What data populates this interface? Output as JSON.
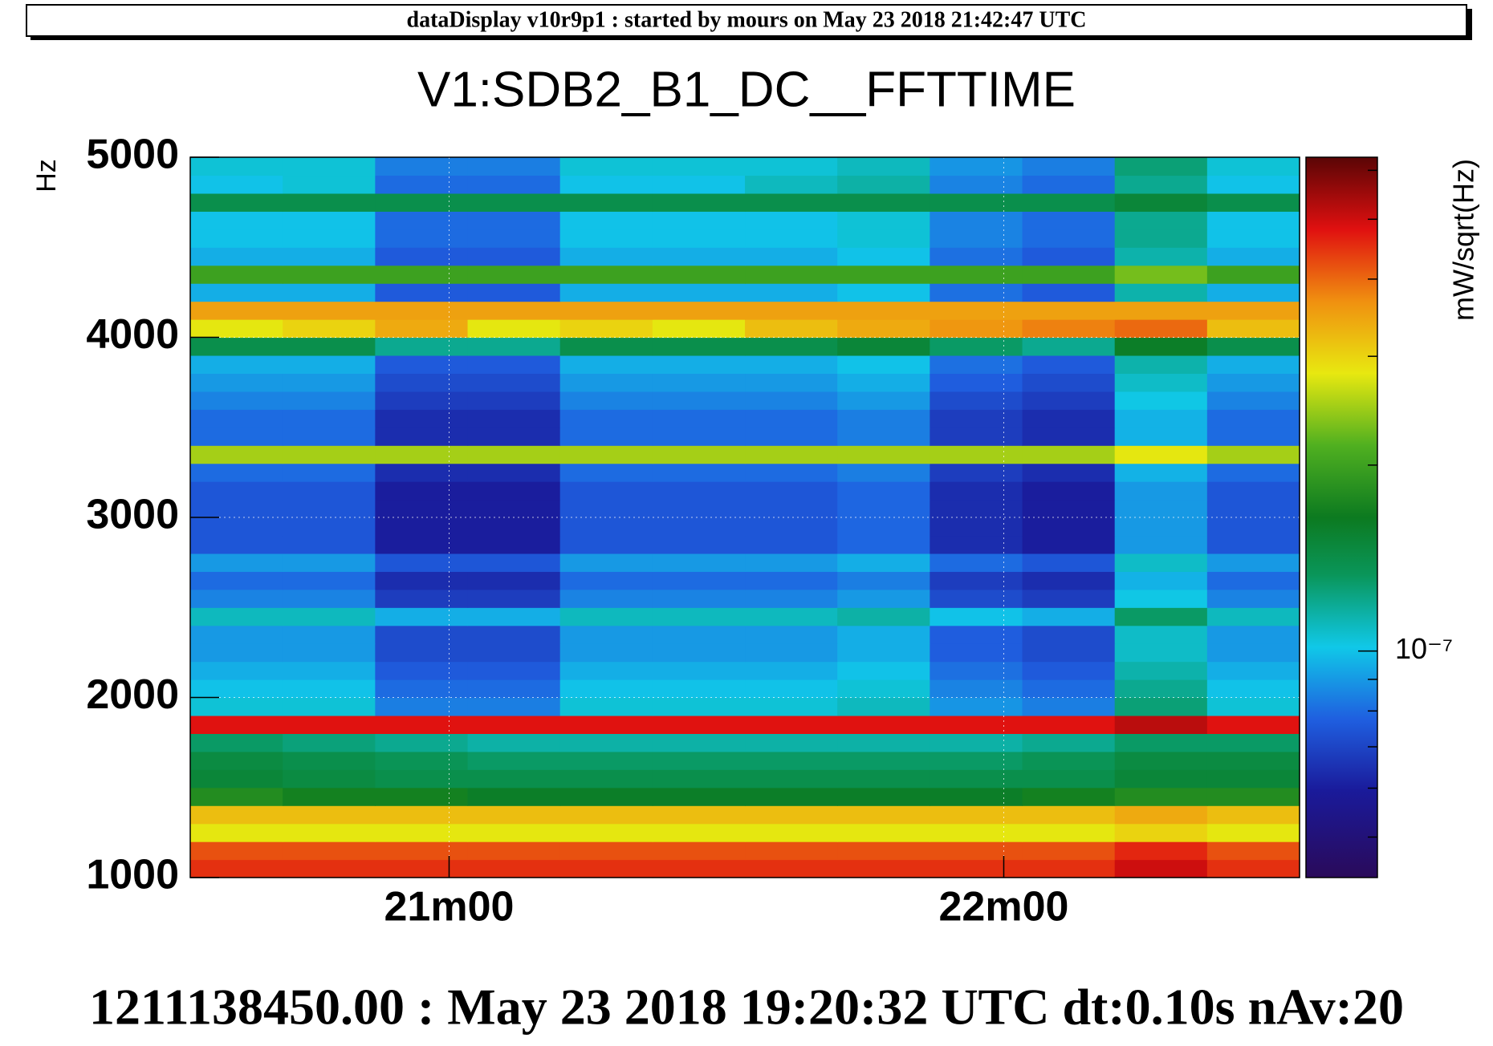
{
  "header": "dataDisplay v10r9p1 : started by mours on May 23 2018 21:42:47 UTC",
  "footer": "1211138450.00 : May 23 2018 19:20:32 UTC dt:0.10s nAv:20",
  "chart_data": {
    "type": "heatmap",
    "title": "V1:SDB2_B1_DC__FFTTIME",
    "y_label": "Hz",
    "colorbar_label": "mW/sqrt(Hz)",
    "xlim": [
      20.5333,
      22.5333
    ],
    "xticks": [
      {
        "value": 21,
        "label": "21m00"
      },
      {
        "value": 22,
        "label": "22m00"
      }
    ],
    "ylim": [
      1000,
      5000
    ],
    "yticks": [
      1000,
      2000,
      3000,
      4000,
      5000
    ],
    "zlim": [
      4.3e-08,
      6.3e-07
    ],
    "zscale": "log",
    "zticks": [
      {
        "value": 1e-07,
        "label": "10⁻⁷"
      }
    ],
    "zminorticks": [
      5e-08,
      6e-08,
      7e-08,
      8e-08,
      9e-08,
      2e-07,
      3e-07,
      4e-07,
      5e-07,
      6e-07
    ],
    "grid": true,
    "x": [
      20.6167,
      20.7833,
      20.95,
      21.1167,
      21.2833,
      21.45,
      21.6167,
      21.7833,
      21.95,
      22.1167,
      22.2833,
      22.45
    ],
    "y": [
      1050,
      1150,
      1250,
      1350,
      1450,
      1550,
      1650,
      1750,
      1850,
      1950,
      2050,
      2150,
      2250,
      2350,
      2450,
      2550,
      2650,
      2750,
      2850,
      2950,
      3050,
      3150,
      3250,
      3350,
      3450,
      3550,
      3650,
      3750,
      3850,
      3950,
      4050,
      4150,
      4250,
      4350,
      4450,
      4550,
      4650,
      4750,
      4850,
      4950
    ],
    "z": [
      [
        4.5e-07,
        4.5e-07,
        4.5e-07,
        4.5e-07,
        4.5e-07,
        4.5e-07,
        4.5e-07,
        4.5e-07,
        4.5e-07,
        4.5e-07,
        5e-07,
        4.5e-07
      ],
      [
        4.2e-07,
        4.2e-07,
        4.2e-07,
        4.2e-07,
        4.2e-07,
        4.2e-07,
        4.2e-07,
        4.2e-07,
        4.2e-07,
        4.2e-07,
        4.6e-07,
        4.2e-07
      ],
      [
        2.8e-07,
        2.8e-07,
        2.8e-07,
        2.8e-07,
        2.8e-07,
        2.8e-07,
        2.8e-07,
        2.8e-07,
        2.8e-07,
        2.8e-07,
        3e-07,
        2.8e-07
      ],
      [
        3.2e-07,
        3.2e-07,
        3.2e-07,
        3.2e-07,
        3.2e-07,
        3.2e-07,
        3.2e-07,
        3.2e-07,
        3.2e-07,
        3.2e-07,
        3.4e-07,
        3.2e-07
      ],
      [
        1.8e-07,
        1.7e-07,
        1.7e-07,
        1.6e-07,
        1.6e-07,
        1.6e-07,
        1.6e-07,
        1.6e-07,
        1.6e-07,
        1.7e-07,
        1.8e-07,
        1.8e-07
      ],
      [
        1.5e-07,
        1.45e-07,
        1.4e-07,
        1.4e-07,
        1.4e-07,
        1.4e-07,
        1.4e-07,
        1.4e-07,
        1.4e-07,
        1.4e-07,
        1.5e-07,
        1.5e-07
      ],
      [
        1.45e-07,
        1.4e-07,
        1.35e-07,
        1.3e-07,
        1.3e-07,
        1.3e-07,
        1.3e-07,
        1.3e-07,
        1.3e-07,
        1.35e-07,
        1.45e-07,
        1.45e-07
      ],
      [
        1.3e-07,
        1.25e-07,
        1.2e-07,
        1.15e-07,
        1.15e-07,
        1.15e-07,
        1.15e-07,
        1.15e-07,
        1.15e-07,
        1.2e-07,
        1.3e-07,
        1.3e-07
      ],
      [
        4.8e-07,
        4.8e-07,
        4.8e-07,
        4.8e-07,
        4.8e-07,
        4.8e-07,
        4.8e-07,
        4.8e-07,
        4.8e-07,
        4.8e-07,
        5.2e-07,
        4.8e-07
      ],
      [
        1.05e-07,
        1.05e-07,
        8.4e-08,
        8.4e-08,
        1.05e-07,
        1.05e-07,
        1.05e-07,
        1.1e-07,
        8.9e-08,
        8.4e-08,
        1.26e-07,
        1.05e-07
      ],
      [
        1e-07,
        1e-07,
        8e-08,
        8e-08,
        1e-07,
        1e-07,
        1e-07,
        1.05e-07,
        8.5e-08,
        8e-08,
        1.2e-07,
        1e-07
      ],
      [
        9.5e-08,
        9.5e-08,
        7.6e-08,
        7.6e-08,
        9.5e-08,
        9.5e-08,
        9.5e-08,
        1e-07,
        8.1e-08,
        7.6e-08,
        1.14e-07,
        9.5e-08
      ],
      [
        9e-08,
        9e-08,
        7.2e-08,
        7.2e-08,
        9e-08,
        9e-08,
        9e-08,
        9.5e-08,
        7.7e-08,
        7.2e-08,
        1.08e-07,
        9e-08
      ],
      [
        9e-08,
        9e-08,
        7.2e-08,
        7.2e-08,
        9e-08,
        9e-08,
        9e-08,
        9.5e-08,
        7.7e-08,
        7.2e-08,
        1.08e-07,
        9e-08
      ],
      [
        1.1e-07,
        1.1e-07,
        9.5e-08,
        9.5e-08,
        1.1e-07,
        1.1e-07,
        1.1e-07,
        1.15e-07,
        1e-07,
        9.5e-08,
        1.3e-07,
        1.1e-07
      ],
      [
        8.5e-08,
        8.5e-08,
        6.8e-08,
        6.8e-08,
        8.5e-08,
        8.5e-08,
        8.5e-08,
        9e-08,
        7.2e-08,
        6.8e-08,
        1.02e-07,
        8.5e-08
      ],
      [
        8e-08,
        8e-08,
        6.4e-08,
        6.4e-08,
        8e-08,
        8e-08,
        8e-08,
        8.4e-08,
        6.8e-08,
        6.4e-08,
        9.6e-08,
        8e-08
      ],
      [
        9e-08,
        9e-08,
        7.5e-08,
        7.5e-08,
        9e-08,
        9e-08,
        9e-08,
        9.5e-08,
        8e-08,
        7.5e-08,
        1.08e-07,
        9e-08
      ],
      [
        7.5e-08,
        7.5e-08,
        6e-08,
        6e-08,
        7.5e-08,
        7.5e-08,
        7.5e-08,
        7.9e-08,
        6.4e-08,
        6e-08,
        9e-08,
        7.5e-08
      ],
      [
        7.5e-08,
        7.5e-08,
        6e-08,
        6e-08,
        7.5e-08,
        7.5e-08,
        7.5e-08,
        7.9e-08,
        6.4e-08,
        6e-08,
        9e-08,
        7.5e-08
      ],
      [
        7.5e-08,
        7.5e-08,
        6e-08,
        6e-08,
        7.5e-08,
        7.5e-08,
        7.5e-08,
        7.9e-08,
        6.4e-08,
        6e-08,
        9e-08,
        7.5e-08
      ],
      [
        7.5e-08,
        7.5e-08,
        6e-08,
        6e-08,
        7.5e-08,
        7.5e-08,
        7.5e-08,
        7.9e-08,
        6.4e-08,
        6e-08,
        9e-08,
        7.5e-08
      ],
      [
        8e-08,
        8e-08,
        6.4e-08,
        6.4e-08,
        8e-08,
        8e-08,
        8e-08,
        8.4e-08,
        6.8e-08,
        6.4e-08,
        9.6e-08,
        8e-08
      ],
      [
        2.5e-07,
        2.5e-07,
        2.5e-07,
        2.5e-07,
        2.5e-07,
        2.5e-07,
        2.5e-07,
        2.5e-07,
        2.5e-07,
        2.5e-07,
        2.8e-07,
        2.5e-07
      ],
      [
        8e-08,
        8e-08,
        6.4e-08,
        6.4e-08,
        8e-08,
        8e-08,
        8e-08,
        8.4e-08,
        6.8e-08,
        6.4e-08,
        9.6e-08,
        8e-08
      ],
      [
        8e-08,
        8e-08,
        6.4e-08,
        6.4e-08,
        8e-08,
        8e-08,
        8e-08,
        8.4e-08,
        6.8e-08,
        6.4e-08,
        9.6e-08,
        8e-08
      ],
      [
        8.5e-08,
        8.5e-08,
        6.8e-08,
        6.8e-08,
        8.5e-08,
        8.5e-08,
        8.5e-08,
        9e-08,
        7.2e-08,
        6.8e-08,
        1.02e-07,
        8.5e-08
      ],
      [
        9e-08,
        9e-08,
        7.2e-08,
        7.2e-08,
        9e-08,
        9e-08,
        9e-08,
        9.5e-08,
        7.7e-08,
        7.2e-08,
        1.08e-07,
        9e-08
      ],
      [
        9.5e-08,
        9.5e-08,
        7.6e-08,
        7.6e-08,
        9.5e-08,
        9.5e-08,
        9.5e-08,
        1e-07,
        8.1e-08,
        7.6e-08,
        1.14e-07,
        9.5e-08
      ],
      [
        1.4e-07,
        1.4e-07,
        1.2e-07,
        1.2e-07,
        1.4e-07,
        1.4e-07,
        1.4e-07,
        1.5e-07,
        1.3e-07,
        1.2e-07,
        1.6e-07,
        1.4e-07
      ],
      [
        2.8e-07,
        3e-07,
        3.4e-07,
        2.8e-07,
        3e-07,
        2.8e-07,
        3.2e-07,
        3.4e-07,
        3.6e-07,
        3.8e-07,
        4e-07,
        3.2e-07
      ],
      [
        3.5e-07,
        3.5e-07,
        3.5e-07,
        3.5e-07,
        3.5e-07,
        3.5e-07,
        3.5e-07,
        3.5e-07,
        3.5e-07,
        3.5e-07,
        3.5e-07,
        3.5e-07
      ],
      [
        9.5e-08,
        9.5e-08,
        7.6e-08,
        7.6e-08,
        9.5e-08,
        9.5e-08,
        9.5e-08,
        1e-07,
        8.1e-08,
        7.6e-08,
        1.14e-07,
        9.5e-08
      ],
      [
        2e-07,
        2e-07,
        2e-07,
        2e-07,
        2e-07,
        2e-07,
        2e-07,
        2e-07,
        2e-07,
        2e-07,
        2.3e-07,
        2e-07
      ],
      [
        9.5e-08,
        9.5e-08,
        7.6e-08,
        7.6e-08,
        9.5e-08,
        9.5e-08,
        9.5e-08,
        1e-07,
        8.1e-08,
        7.6e-08,
        1.14e-07,
        9.5e-08
      ],
      [
        1e-07,
        1e-07,
        8e-08,
        8e-08,
        1e-07,
        1e-07,
        1e-07,
        1.05e-07,
        8.5e-08,
        8e-08,
        1.2e-07,
        1e-07
      ],
      [
        1e-07,
        1e-07,
        8e-08,
        8e-08,
        1e-07,
        1e-07,
        1e-07,
        1.05e-07,
        8.5e-08,
        8e-08,
        1.2e-07,
        1e-07
      ],
      [
        1.4e-07,
        1.4e-07,
        1.4e-07,
        1.4e-07,
        1.4e-07,
        1.4e-07,
        1.4e-07,
        1.4e-07,
        1.4e-07,
        1.4e-07,
        1.5e-07,
        1.4e-07
      ],
      [
        1e-07,
        1.05e-07,
        8e-08,
        8e-08,
        1e-07,
        1e-07,
        1.1e-07,
        1.15e-07,
        8.5e-08,
        8e-08,
        1.2e-07,
        1e-07
      ],
      [
        1.05e-07,
        1.05e-07,
        8.4e-08,
        8.4e-08,
        1.05e-07,
        1.05e-07,
        1.05e-07,
        1.1e-07,
        8.9e-08,
        8.4e-08,
        1.26e-07,
        1.05e-07
      ]
    ]
  }
}
